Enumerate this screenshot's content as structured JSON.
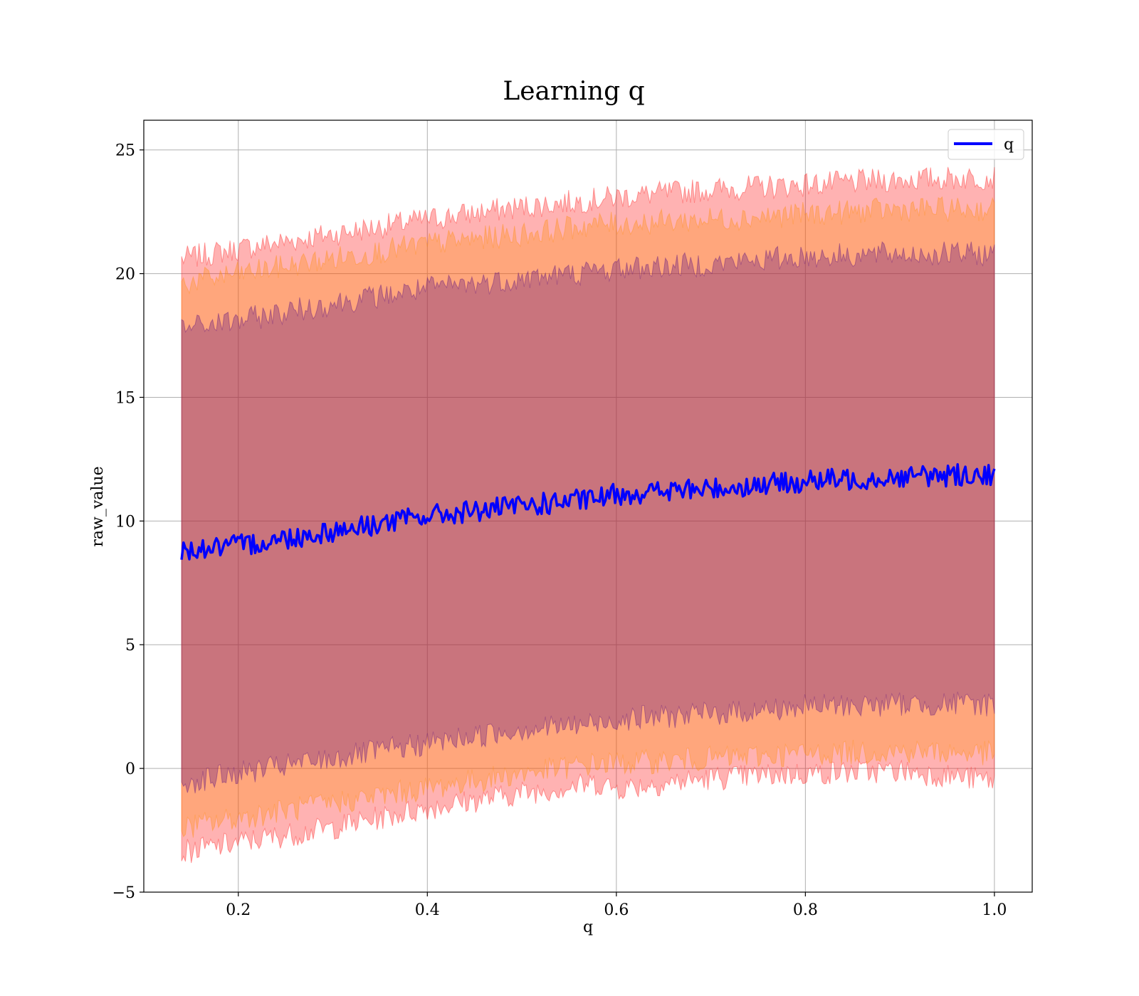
{
  "chart_data": {
    "type": "line",
    "title": "Learning q",
    "xlabel": "q",
    "ylabel": "raw_value",
    "xlim": [
      0.1,
      1.04
    ],
    "ylim": [
      -5,
      26.2
    ],
    "xticks": [
      0.2,
      0.4,
      0.6,
      0.8,
      1.0
    ],
    "xtick_labels": [
      "0.2",
      "0.4",
      "0.6",
      "0.8",
      "1.0"
    ],
    "yticks": [
      -5,
      0,
      5,
      10,
      15,
      20,
      25
    ],
    "ytick_labels": [
      "−5",
      "0",
      "5",
      "10",
      "15",
      "20",
      "25"
    ],
    "grid": true,
    "legend": {
      "position": "top-right",
      "entries": [
        "q"
      ]
    },
    "series": [
      {
        "name": "q",
        "color": "#0000ff",
        "x": [
          0.14,
          0.2,
          0.3,
          0.4,
          0.5,
          0.58,
          0.6,
          0.7,
          0.8,
          0.9,
          1.0
        ],
        "y": [
          8.8,
          9.0,
          9.6,
          10.2,
          10.6,
          10.9,
          11.1,
          11.3,
          11.6,
          11.8,
          11.9
        ]
      }
    ],
    "bands": [
      {
        "color": "#ff0000",
        "opacity": 0.3,
        "x": [
          0.14,
          0.2,
          0.3,
          0.4,
          0.5,
          0.58,
          0.6,
          0.7,
          0.8,
          0.9,
          1.0
        ],
        "lower": [
          -3.4,
          -3.0,
          -2.4,
          -1.6,
          -1.0,
          -0.6,
          -0.8,
          -0.4,
          -0.2,
          -0.1,
          -0.5
        ],
        "upper": [
          20.6,
          21.0,
          21.6,
          22.2,
          22.7,
          23.0,
          23.1,
          23.4,
          23.6,
          23.8,
          23.9
        ]
      },
      {
        "color": "#ff8c00",
        "opacity": 0.3,
        "x": [
          0.14,
          0.2,
          0.3,
          0.4,
          0.5,
          0.58,
          0.6,
          0.7,
          0.8,
          0.9,
          1.0
        ],
        "lower": [
          -2.4,
          -2.0,
          -1.4,
          -0.8,
          -0.2,
          0.2,
          0.2,
          0.4,
          0.6,
          0.7,
          0.6
        ],
        "upper": [
          19.6,
          20.0,
          20.6,
          21.2,
          21.6,
          22.0,
          22.0,
          22.2,
          22.4,
          22.6,
          22.6
        ]
      },
      {
        "color": "#4b0082",
        "opacity": 0.3,
        "x": [
          0.14,
          0.2,
          0.3,
          0.4,
          0.5,
          0.58,
          0.6,
          0.7,
          0.8,
          0.9,
          1.0
        ],
        "lower": [
          -0.6,
          -0.2,
          0.4,
          1.0,
          1.6,
          1.8,
          2.0,
          2.2,
          2.5,
          2.6,
          2.6
        ],
        "upper": [
          17.8,
          18.1,
          18.8,
          19.4,
          19.8,
          20.1,
          20.2,
          20.4,
          20.7,
          20.8,
          20.8
        ]
      }
    ]
  }
}
